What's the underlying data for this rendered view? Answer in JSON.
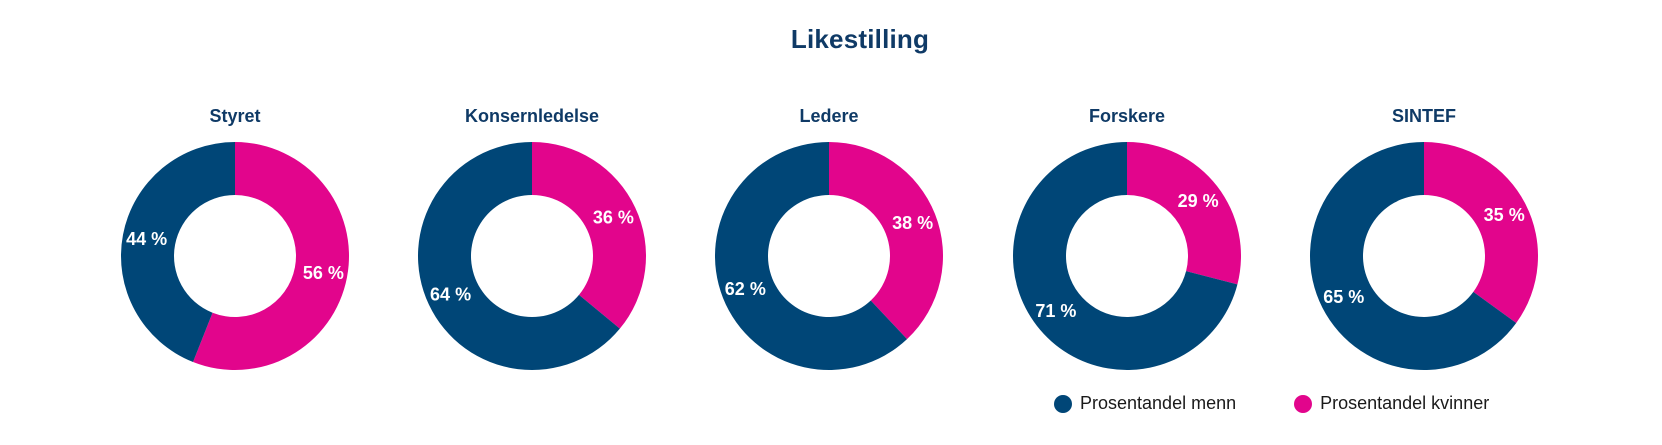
{
  "chart_data": {
    "type": "pie",
    "variant": "donut",
    "title": "Likestilling",
    "colors": {
      "menn": "#004677",
      "kvinner": "#e2058c"
    },
    "legend": [
      {
        "key": "menn",
        "label": "Prosentandel menn"
      },
      {
        "key": "kvinner",
        "label": "Prosentandel kvinner"
      }
    ],
    "legend_position": "bottom-right",
    "charts": [
      {
        "name": "Styret",
        "menn": 44,
        "kvinner": 56,
        "menn_label": "44 %",
        "kvinner_label": "56 %"
      },
      {
        "name": "Konsernledelse",
        "menn": 64,
        "kvinner": 36,
        "menn_label": "64 %",
        "kvinner_label": "36 %"
      },
      {
        "name": "Ledere",
        "menn": 62,
        "kvinner": 38,
        "menn_label": "62 %",
        "kvinner_label": "38 %"
      },
      {
        "name": "Forskere",
        "menn": 71,
        "kvinner": 29,
        "menn_label": "71 %",
        "kvinner_label": "29 %"
      },
      {
        "name": "SINTEF",
        "menn": 65,
        "kvinner": 35,
        "menn_label": "65 %",
        "kvinner_label": "35 %"
      }
    ]
  }
}
